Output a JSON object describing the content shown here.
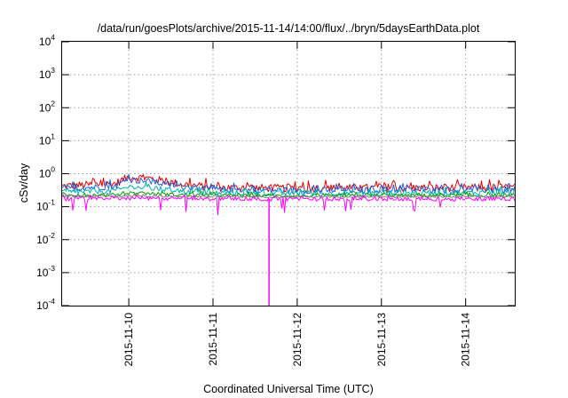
{
  "chart_data": {
    "type": "line",
    "title": "/data/run/goesPlots/archive/2015-11-14/14:00/flux/../bryn/5daysEarthData.plot",
    "xlabel": "Coordinated Universal Time (UTC)",
    "ylabel": "cSv/day",
    "yscale": "log",
    "ylim": [
      0.0001,
      10000
    ],
    "yticks": [
      {
        "base": "10",
        "exp": "-4",
        "value": 0.0001
      },
      {
        "base": "10",
        "exp": "-3",
        "value": 0.001
      },
      {
        "base": "10",
        "exp": "-2",
        "value": 0.01
      },
      {
        "base": "10",
        "exp": "-1",
        "value": 0.1
      },
      {
        "base": "10",
        "exp": "0",
        "value": 1
      },
      {
        "base": "10",
        "exp": "1",
        "value": 10
      },
      {
        "base": "10",
        "exp": "2",
        "value": 100
      },
      {
        "base": "10",
        "exp": "3",
        "value": 1000
      },
      {
        "base": "10",
        "exp": "4",
        "value": 10000
      }
    ],
    "xlim": [
      "2015-11-09 05:00",
      "2015-11-14 14:00"
    ],
    "xticks": [
      "2015-11-10",
      "2015-11-11",
      "2015-11-12",
      "2015-11-13",
      "2015-11-14"
    ],
    "grid": true,
    "series": [
      {
        "color": "#e00000",
        "x": [
          "2015-11-09 05:00",
          "2015-11-09 20:00",
          "2015-11-10 00:00",
          "2015-11-10 06:00",
          "2015-11-10 14:00",
          "2015-11-11 00:00",
          "2015-11-12 00:00",
          "2015-11-13 00:00",
          "2015-11-14 14:00"
        ],
        "y": [
          0.42,
          0.5,
          0.8,
          0.72,
          0.5,
          0.38,
          0.36,
          0.37,
          0.38
        ]
      },
      {
        "color": "#2060e0",
        "x": [
          "2015-11-09 05:00",
          "2015-11-09 20:00",
          "2015-11-10 00:00",
          "2015-11-10 06:00",
          "2015-11-10 14:00",
          "2015-11-11 00:00",
          "2015-11-12 00:00",
          "2015-11-13 00:00",
          "2015-11-14 14:00"
        ],
        "y": [
          0.35,
          0.42,
          0.65,
          0.58,
          0.42,
          0.33,
          0.31,
          0.32,
          0.33
        ]
      },
      {
        "color": "#00b0b0",
        "x": [
          "2015-11-09 05:00",
          "2015-11-09 20:00",
          "2015-11-10 00:00",
          "2015-11-10 06:00",
          "2015-11-10 14:00",
          "2015-11-11 00:00",
          "2015-11-12 00:00",
          "2015-11-13 00:00",
          "2015-11-14 14:00"
        ],
        "y": [
          0.27,
          0.3,
          0.4,
          0.36,
          0.3,
          0.26,
          0.25,
          0.26,
          0.27
        ]
      },
      {
        "color": "#00a000",
        "x": [
          "2015-11-09 05:00",
          "2015-11-09 20:00",
          "2015-11-10 00:00",
          "2015-11-10 06:00",
          "2015-11-10 14:00",
          "2015-11-11 00:00",
          "2015-11-12 00:00",
          "2015-11-13 00:00",
          "2015-11-14 14:00"
        ],
        "y": [
          0.22,
          0.23,
          0.26,
          0.25,
          0.23,
          0.22,
          0.21,
          0.22,
          0.22
        ]
      },
      {
        "color": "#808080",
        "x": [
          "2015-11-09 05:00",
          "2015-11-10 00:00",
          "2015-11-11 00:00",
          "2015-11-12 00:00",
          "2015-11-13 00:00",
          "2015-11-14 14:00"
        ],
        "y": [
          0.2,
          0.21,
          0.2,
          0.2,
          0.2,
          0.2
        ]
      },
      {
        "color": "#ff00ff",
        "x": [
          "2015-11-09 05:00",
          "2015-11-10 00:00",
          "2015-11-11 00:00",
          "2015-11-11 15:50",
          "2015-11-11 15:55",
          "2015-11-11 16:00",
          "2015-11-12 00:00",
          "2015-11-13 00:00",
          "2015-11-14 14:00"
        ],
        "y": [
          0.17,
          0.18,
          0.17,
          0.17,
          0.0001,
          0.17,
          0.17,
          0.17,
          0.17
        ]
      }
    ]
  }
}
